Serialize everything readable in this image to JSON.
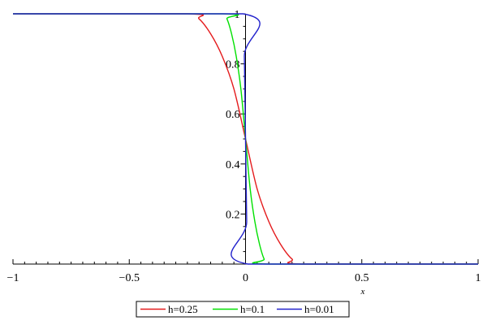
{
  "chart_data": {
    "type": "line",
    "title": "",
    "xlabel": "x",
    "ylabel": "",
    "xlim": [
      -1,
      1
    ],
    "ylim": [
      0,
      1
    ],
    "x_ticks": [
      {
        "value": -1,
        "label": "−1"
      },
      {
        "value": -0.5,
        "label": "−0.5"
      },
      {
        "value": 0,
        "label": "0"
      },
      {
        "value": 0.5,
        "label": "0.5"
      },
      {
        "value": 1,
        "label": "1"
      }
    ],
    "y_ticks": [
      {
        "value": 0.2,
        "label": "0.2"
      },
      {
        "value": 0.4,
        "label": "0.4"
      },
      {
        "value": 0.6,
        "label": "0.6"
      },
      {
        "value": 0.8,
        "label": "0.8"
      },
      {
        "value": 1,
        "label": "1"
      }
    ],
    "grid": false,
    "legend_position": "bottom-center",
    "series": [
      {
        "name": "h=0.25",
        "color": "#e41a1c",
        "x": [
          -1,
          -0.25,
          -0.2,
          -0.15,
          -0.1,
          -0.05,
          0,
          0.05,
          0.1,
          0.15,
          0.2,
          0.25,
          1
        ],
        "values": [
          1,
          1,
          0.98,
          0.92,
          0.83,
          0.7,
          0.5,
          0.3,
          0.17,
          0.08,
          0.02,
          0,
          0
        ]
      },
      {
        "name": "h=0.1",
        "color": "#00e000",
        "x": [
          -1,
          -0.1,
          -0.08,
          -0.06,
          -0.04,
          -0.02,
          0,
          0.02,
          0.04,
          0.06,
          0.08,
          0.1,
          1
        ],
        "values": [
          1,
          1,
          0.98,
          0.92,
          0.83,
          0.7,
          0.5,
          0.3,
          0.17,
          0.08,
          0.02,
          0,
          0
        ]
      },
      {
        "name": "h=0.01",
        "color": "#2222cc",
        "x": [
          -1,
          -0.01,
          -0.005,
          0,
          0.005,
          0.01,
          1
        ],
        "values": [
          1,
          1,
          0.83,
          0.5,
          0.17,
          0,
          0
        ]
      }
    ]
  }
}
